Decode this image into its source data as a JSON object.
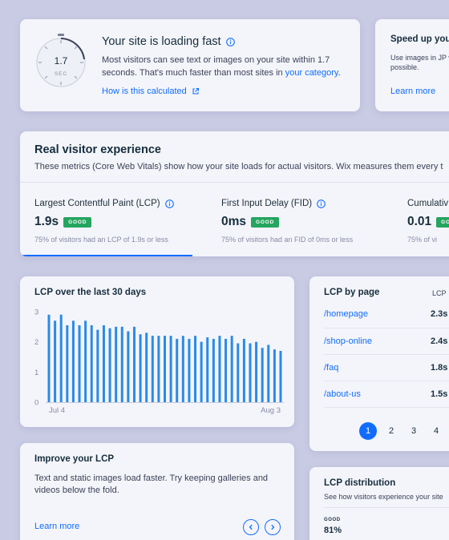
{
  "speed_card": {
    "gauge_value": "1.7",
    "gauge_unit": "SEC",
    "title": "Your site is loading fast",
    "description_pre": "Most visitors can see text or images on your site within 1.7 seconds. That's much faster than most sites in ",
    "description_link": "your category",
    "description_post": ".",
    "link": "How is this calculated"
  },
  "speedup_card": {
    "title": "Speed up your",
    "description": "Use images in JP when possible.",
    "link": "Learn more"
  },
  "real_visitor": {
    "title": "Real visitor experience",
    "subtitle": "These metrics (Core Web Vitals) show how your site loads for actual visitors. Wix measures them every t",
    "metrics": [
      {
        "name": "Largest Contentful Paint (LCP)",
        "value": "1.9s",
        "badge": "GOOD",
        "note": "75% of visitors had an LCP of 1.9s or less"
      },
      {
        "name": "First Input Delay (FID)",
        "value": "0ms",
        "badge": "GOOD",
        "note": "75% of visitors had an FID of 0ms or less"
      },
      {
        "name": "Cumulativ",
        "value": "0.01",
        "badge": "GOOD",
        "note": "75% of vi"
      }
    ]
  },
  "lcp_chart_card": {
    "title": "LCP over the last 30 days"
  },
  "chart_data": {
    "type": "bar",
    "title": "LCP over the last 30 days",
    "ylim": [
      0,
      3
    ],
    "yticks": [
      "0",
      "1",
      "2",
      "3"
    ],
    "xtick_labels": [
      "Jul 4",
      "Aug 3"
    ],
    "values": [
      2.9,
      2.7,
      2.9,
      2.55,
      2.7,
      2.55,
      2.7,
      2.55,
      2.4,
      2.55,
      2.45,
      2.5,
      2.5,
      2.35,
      2.5,
      2.25,
      2.3,
      2.2,
      2.2,
      2.2,
      2.2,
      2.1,
      2.2,
      2.1,
      2.2,
      2.0,
      2.15,
      2.1,
      2.2,
      2.1,
      2.2,
      1.95,
      2.1,
      1.95,
      2.0,
      1.8,
      1.9,
      1.75,
      1.7
    ],
    "bar_color": "#2b8ae8"
  },
  "lcp_by_page": {
    "title": "LCP by page",
    "column_header": "LCP",
    "rows": [
      {
        "page": "/homepage",
        "value": "2.3s"
      },
      {
        "page": "/shop-online",
        "value": "2.4s"
      },
      {
        "page": "/faq",
        "value": "1.8s"
      },
      {
        "page": "/about-us",
        "value": "1.5s"
      }
    ],
    "pages": [
      "1",
      "2",
      "3",
      "4"
    ],
    "active_page": "1"
  },
  "improve_card": {
    "title": "Improve your LCP",
    "description": "Text and static images load faster. Try keeping galleries and videos below the fold.",
    "link": "Learn more"
  },
  "distribution_card": {
    "title": "LCP distribution",
    "description": "See how visitors experience your site",
    "good_label": "GOOD",
    "good_value": "81%"
  },
  "colors": {
    "accent": "#116dff",
    "good": "#25a55f",
    "background": "#c9cbe4",
    "card": "#f4f5fb"
  }
}
